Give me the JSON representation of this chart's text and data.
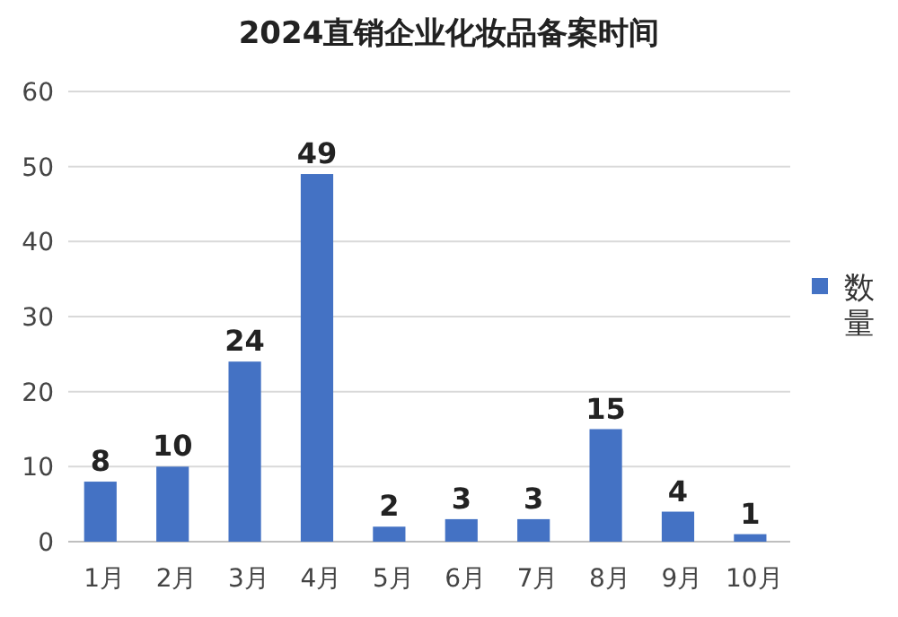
{
  "chart_data": {
    "type": "bar",
    "title": "2024直销企业化妆品备案时间",
    "categories": [
      "1月",
      "2月",
      "3月",
      "4月",
      "5月",
      "6月",
      "7月",
      "8月",
      "9月",
      "10月"
    ],
    "series": [
      {
        "name": "数量",
        "color": "#4472c4",
        "values": [
          8,
          10,
          24,
          49,
          2,
          3,
          3,
          15,
          4,
          1
        ]
      }
    ],
    "ylim": [
      0,
      60
    ],
    "yticks": [
      0,
      10,
      20,
      30,
      40,
      50,
      60
    ],
    "grid": "y",
    "legend": "right",
    "data_labels": true
  }
}
